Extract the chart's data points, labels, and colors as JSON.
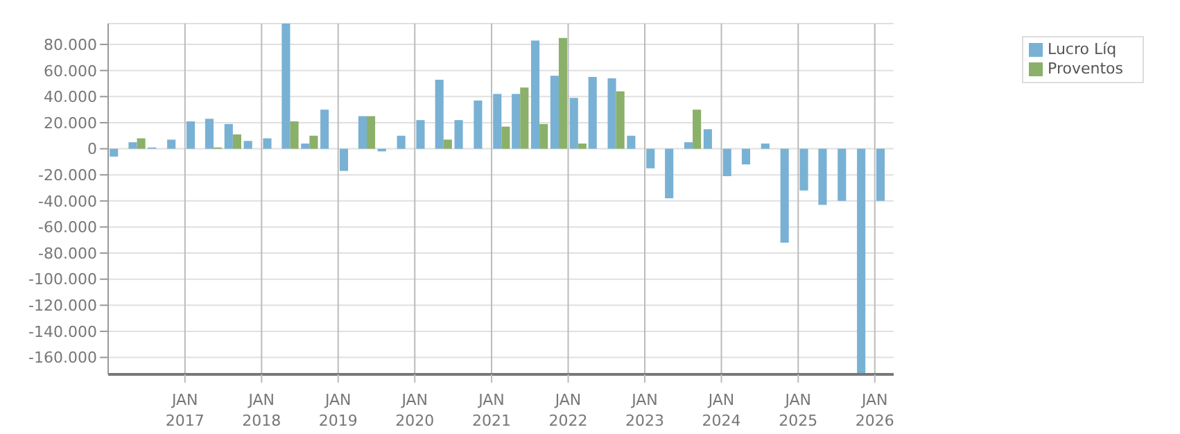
{
  "chart_data": {
    "type": "bar",
    "x": [
      "2016-02-15",
      "2016-05-15",
      "2016-08-15",
      "2016-11-15",
      "2017-02-15",
      "2017-05-15",
      "2017-08-15",
      "2017-11-15",
      "2018-02-15",
      "2018-05-15",
      "2018-08-15",
      "2018-11-15",
      "2019-02-15",
      "2019-05-15",
      "2019-08-15",
      "2019-11-15",
      "2020-02-15",
      "2020-05-15",
      "2020-08-15",
      "2020-11-15",
      "2021-02-15",
      "2021-05-15",
      "2021-08-15",
      "2021-11-15",
      "2022-02-15",
      "2022-05-15",
      "2022-08-15",
      "2022-11-15",
      "2023-02-15",
      "2023-05-15",
      "2023-08-15",
      "2023-11-15",
      "2024-02-15",
      "2024-05-15",
      "2024-08-15",
      "2024-11-15",
      "2025-02-15",
      "2025-05-15",
      "2025-08-15",
      "2025-11-15",
      "2026-02-15"
    ],
    "series": [
      {
        "name": "Lucro Líq",
        "color": "#78b1d4",
        "values": [
          -6000,
          5000,
          1000,
          7000,
          21000,
          23000,
          19000,
          6000,
          8000,
          96000,
          4000,
          30000,
          -17000,
          25000,
          -2000,
          10000,
          22000,
          53000,
          22000,
          37000,
          42000,
          42000,
          83000,
          56000,
          39000,
          55000,
          54000,
          10000,
          -15000,
          -38000,
          5000,
          15000,
          -21000,
          -12000,
          4000,
          -72000,
          -32000,
          -43000,
          -40000,
          -173000,
          -40000
        ]
      },
      {
        "name": "Proventos",
        "color": "#8ab06a",
        "values": [
          0,
          8000,
          0,
          0,
          0,
          1000,
          11000,
          0,
          0,
          21000,
          10000,
          0,
          0,
          25000,
          0,
          0,
          0,
          7000,
          0,
          0,
          17000,
          47000,
          19000,
          85000,
          4000,
          0,
          44000,
          0,
          0,
          0,
          30000,
          0,
          0,
          0,
          0,
          0,
          0,
          0,
          0,
          0,
          0
        ]
      }
    ],
    "xlim": [
      "2016-01",
      "2026-04"
    ],
    "xticks": [
      {
        "value": "2017-01",
        "label": "JAN 2017"
      },
      {
        "value": "2018-01",
        "label": "JAN 2018"
      },
      {
        "value": "2019-01",
        "label": "JAN 2019"
      },
      {
        "value": "2020-01",
        "label": "JAN 2020"
      },
      {
        "value": "2021-01",
        "label": "JAN 2021"
      },
      {
        "value": "2022-01",
        "label": "JAN 2022"
      },
      {
        "value": "2023-01",
        "label": "JAN 2023"
      },
      {
        "value": "2024-01",
        "label": "JAN 2024"
      },
      {
        "value": "2025-01",
        "label": "JAN 2025"
      },
      {
        "value": "2026-01",
        "label": "JAN 2026"
      }
    ],
    "ylim": [
      -173000,
      96000
    ],
    "yticks": [
      {
        "value": 80000,
        "label": "80.000"
      },
      {
        "value": 60000,
        "label": "60.000"
      },
      {
        "value": 40000,
        "label": "40.000"
      },
      {
        "value": 20000,
        "label": "20.000"
      },
      0,
      {
        "value": -20000,
        "label": "-20.000"
      },
      {
        "value": -40000,
        "label": "-40.000"
      },
      {
        "value": -60000,
        "label": "-60.000"
      },
      {
        "value": -80000,
        "label": "-80.000"
      },
      {
        "value": -100000,
        "label": "-100.000"
      },
      {
        "value": -120000,
        "label": "-120.000"
      },
      {
        "value": -140000,
        "label": "-140.000"
      },
      {
        "value": -160000,
        "label": "-160.000"
      }
    ],
    "grid": true,
    "legend": "top right"
  }
}
